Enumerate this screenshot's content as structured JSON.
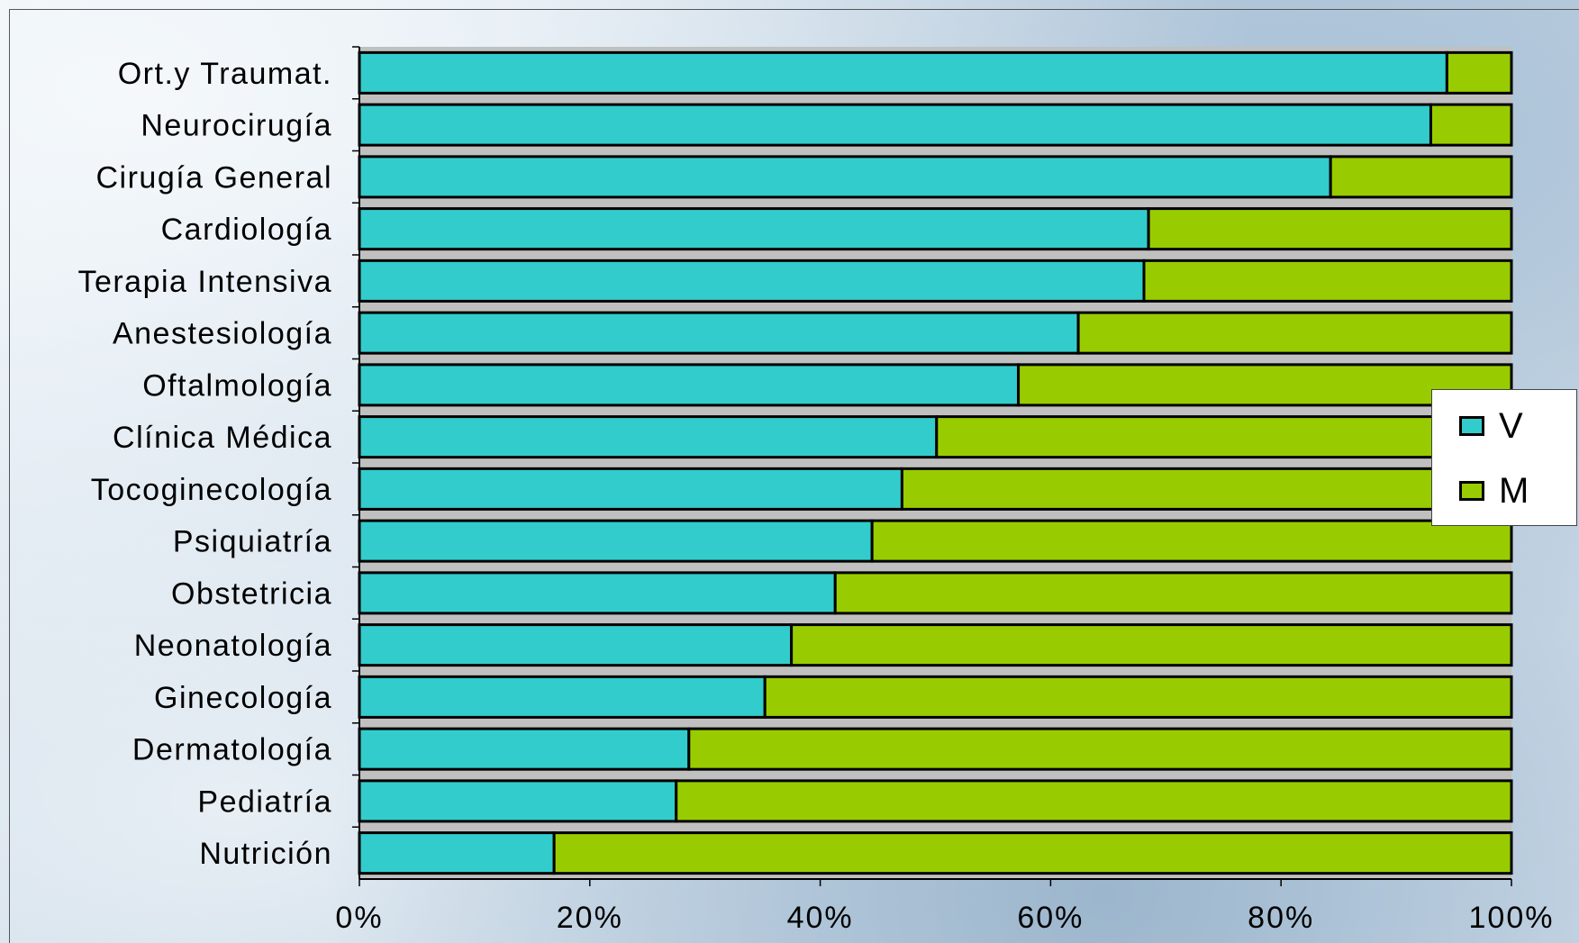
{
  "colors": {
    "V": "#33cccc",
    "M": "#99cc00",
    "plot_bg": "#c0c0c0",
    "bar_border": "#000000"
  },
  "chart_data": {
    "type": "bar",
    "orientation": "horizontal",
    "stacked": "percent",
    "categories": [
      "Ort.y Traumat.",
      "Neurocirugía",
      "Cirugía General",
      "Cardiología",
      "Terapia Intensiva",
      "Anestesiología",
      "Oftalmología",
      "Clínica Médica",
      "Tocoginecología",
      "Psiquiatría",
      "Obstetricia",
      "Neonatología",
      "Ginecología",
      "Dermatología",
      "Pediatría",
      "Nutrición"
    ],
    "series": [
      {
        "name": "V",
        "values": [
          94.4,
          93.0,
          84.3,
          68.5,
          68.1,
          62.4,
          57.2,
          50.1,
          47.1,
          44.5,
          41.3,
          37.5,
          35.2,
          28.6,
          27.5,
          16.9
        ]
      },
      {
        "name": "M",
        "values": [
          5.6,
          7.0,
          15.7,
          31.5,
          31.9,
          37.6,
          42.8,
          49.9,
          52.9,
          55.5,
          58.7,
          62.5,
          64.8,
          71.4,
          72.5,
          83.1
        ]
      }
    ],
    "xticks": [
      "0%",
      "20%",
      "40%",
      "60%",
      "80%",
      "100%"
    ],
    "xlim": [
      0,
      100
    ],
    "grid": false,
    "legend_position": "right"
  }
}
